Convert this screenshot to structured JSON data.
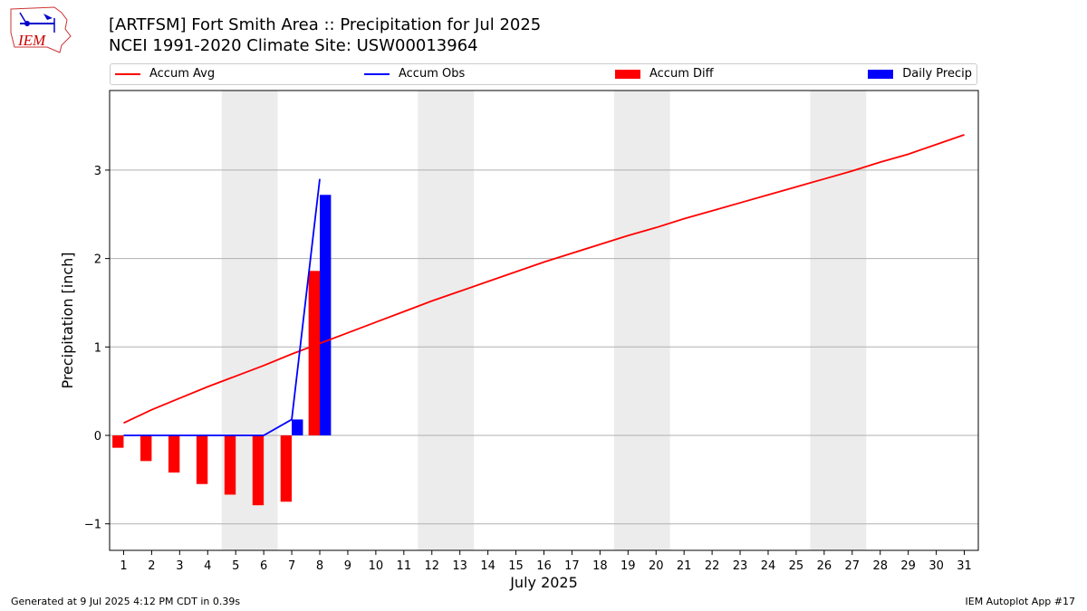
{
  "header": {
    "title_line1": "[ARTFSM] Fort Smith Area :: Precipitation for Jul 2025",
    "title_line2": "NCEI 1991-2020 Climate Site: USW00013964"
  },
  "logo": {
    "text": "IEM"
  },
  "legend": {
    "accum_avg": "Accum Avg",
    "accum_obs": "Accum Obs",
    "accum_diff": "Accum Diff",
    "daily_precip": "Daily Precip"
  },
  "colors": {
    "accum_avg": "#ff0000",
    "accum_obs": "#0000ff",
    "accum_diff": "#ff0000",
    "daily_precip": "#0000ff",
    "weekend_shade": "#ececec",
    "grid": "#b0b0b0"
  },
  "footer": {
    "generated": "Generated at 9 Jul 2025 4:12 PM CDT in 0.39s",
    "app": "IEM Autoplot App #17"
  },
  "chart_data": {
    "type": "bar",
    "xlabel": "July 2025",
    "ylabel": "Precipitation [inch]",
    "xlim": [
      0.5,
      31.5
    ],
    "ylim": [
      -1.3,
      3.9
    ],
    "yticks": [
      -1,
      0,
      1,
      2,
      3
    ],
    "ytick_labels": [
      "−1",
      "0",
      "1",
      "2",
      "3"
    ],
    "x": [
      1,
      2,
      3,
      4,
      5,
      6,
      7,
      8,
      9,
      10,
      11,
      12,
      13,
      14,
      15,
      16,
      17,
      18,
      19,
      20,
      21,
      22,
      23,
      24,
      25,
      26,
      27,
      28,
      29,
      30,
      31
    ],
    "grid": "y",
    "legend_position": "top",
    "weekend_spans": [
      [
        5,
        6
      ],
      [
        12,
        13
      ],
      [
        19,
        20
      ],
      [
        26,
        27
      ]
    ],
    "series": [
      {
        "name": "Accum Avg",
        "kind": "line",
        "x": [
          1,
          2,
          3,
          4,
          5,
          6,
          7,
          8,
          9,
          10,
          11,
          12,
          13,
          14,
          15,
          16,
          17,
          18,
          19,
          20,
          21,
          22,
          23,
          24,
          25,
          26,
          27,
          28,
          29,
          30,
          31
        ],
        "values": [
          0.14,
          0.29,
          0.42,
          0.55,
          0.67,
          0.79,
          0.92,
          1.04,
          1.16,
          1.28,
          1.4,
          1.52,
          1.63,
          1.74,
          1.85,
          1.96,
          2.06,
          2.16,
          2.26,
          2.35,
          2.45,
          2.54,
          2.63,
          2.72,
          2.81,
          2.9,
          2.99,
          3.09,
          3.18,
          3.29,
          3.4
        ]
      },
      {
        "name": "Accum Obs",
        "kind": "line",
        "x": [
          1,
          2,
          3,
          4,
          5,
          6,
          7,
          8
        ],
        "values": [
          0,
          0,
          0,
          0,
          0,
          0,
          0.18,
          2.9
        ]
      },
      {
        "name": "Accum Diff",
        "kind": "bar",
        "x": [
          1,
          2,
          3,
          4,
          5,
          6,
          7,
          8
        ],
        "values": [
          -0.14,
          -0.29,
          -0.42,
          -0.55,
          -0.67,
          -0.79,
          -0.75,
          1.86
        ]
      },
      {
        "name": "Daily Precip",
        "kind": "bar",
        "x": [
          1,
          2,
          3,
          4,
          5,
          6,
          7,
          8
        ],
        "values": [
          0,
          0,
          0,
          0,
          0,
          0,
          0.18,
          2.72
        ]
      }
    ]
  }
}
